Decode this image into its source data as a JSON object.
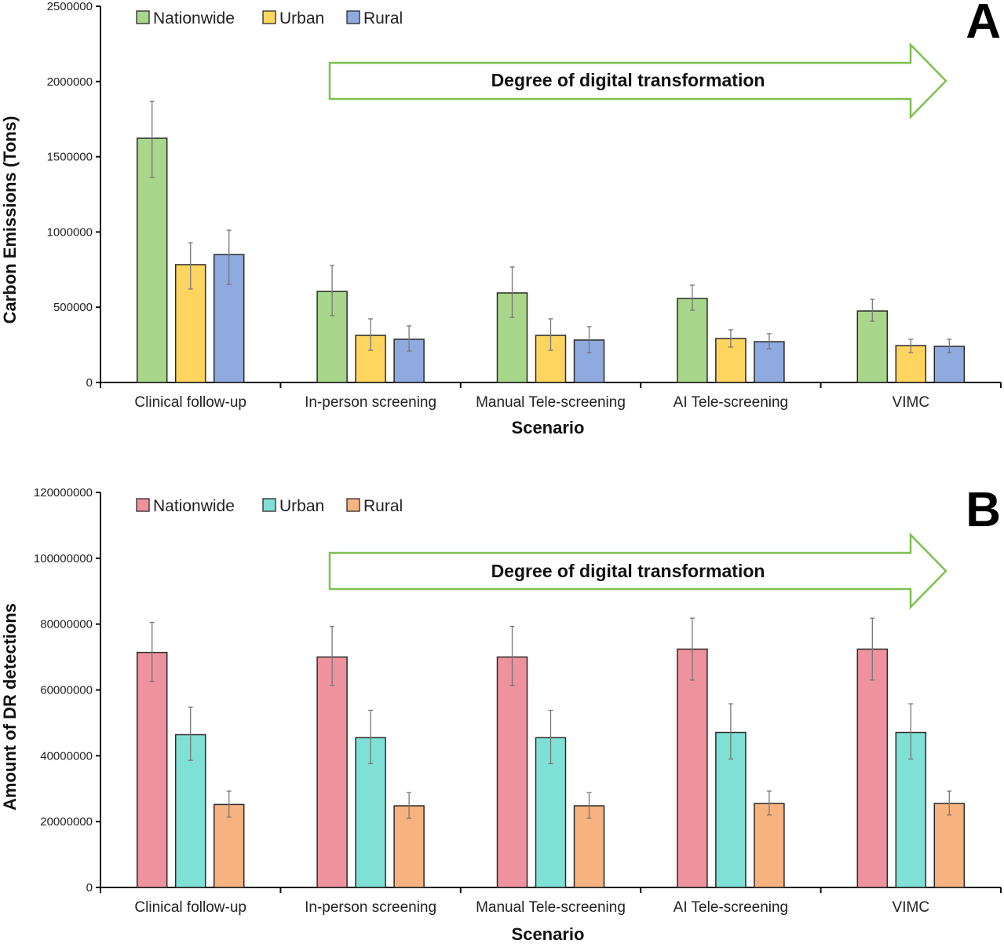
{
  "chart_data": [
    {
      "type": "bar",
      "panel": "A",
      "title": "",
      "xlabel": "Scenario",
      "ylabel": "Carbon Emissions (Tons)",
      "ylim": [
        0,
        2500000
      ],
      "yticks": [
        0,
        500000,
        1000000,
        1500000,
        2000000,
        2500000
      ],
      "ytick_labels": [
        "0",
        "500000",
        "1000000",
        "1500000",
        "2000000",
        "2500000"
      ],
      "categories": [
        "Clinical follow-up",
        "In-person screening",
        "Manual Tele-screening",
        "AI Tele-screening",
        "VIMC"
      ],
      "legend_position": "top-left",
      "annotation": "Degree of digital transformation",
      "series": [
        {
          "name": "Nationwide",
          "color": "#a8d68a",
          "values": [
            1623000,
            605000,
            595000,
            558000,
            475000
          ],
          "err_low": [
            1362000,
            444000,
            433000,
            480000,
            407000
          ],
          "err_high": [
            1868000,
            778000,
            767000,
            647000,
            553000
          ]
        },
        {
          "name": "Urban",
          "color": "#fdd55f",
          "values": [
            783000,
            313000,
            313000,
            292000,
            245000
          ],
          "err_low": [
            621000,
            214000,
            214000,
            235000,
            198000
          ],
          "err_high": [
            929000,
            423000,
            423000,
            350000,
            287000
          ]
        },
        {
          "name": "Rural",
          "color": "#8eaadf",
          "values": [
            850000,
            287000,
            282000,
            271000,
            240000
          ],
          "err_low": [
            652000,
            209000,
            198000,
            224000,
            198000
          ],
          "err_high": [
            1012000,
            376000,
            371000,
            324000,
            287000
          ]
        }
      ]
    },
    {
      "type": "bar",
      "panel": "B",
      "title": "",
      "xlabel": "Scenario",
      "ylabel": "Amount of DR detections",
      "ylim": [
        0,
        120000000
      ],
      "yticks": [
        0,
        20000000,
        40000000,
        60000000,
        80000000,
        100000000,
        120000000
      ],
      "ytick_labels": [
        "0",
        "20000000",
        "40000000",
        "60000000",
        "80000000",
        "100000000",
        "120000000"
      ],
      "categories": [
        "Clinical follow-up",
        "In-person screening",
        "Manual Tele-screening",
        "AI Tele-screening",
        "VIMC"
      ],
      "legend_position": "top-left",
      "annotation": "Degree of digital transformation",
      "series": [
        {
          "name": "Nationwide",
          "color": "#ee929d",
          "values": [
            71400000,
            70000000,
            70000000,
            72400000,
            72400000
          ],
          "err_low": [
            62600000,
            61400000,
            61400000,
            63000000,
            63000000
          ],
          "err_high": [
            80500000,
            79300000,
            79300000,
            81800000,
            81800000
          ]
        },
        {
          "name": "Urban",
          "color": "#7fe0d6",
          "values": [
            46400000,
            45500000,
            45500000,
            47100000,
            47100000
          ],
          "err_low": [
            38600000,
            37600000,
            37600000,
            39000000,
            39000000
          ],
          "err_high": [
            54800000,
            53800000,
            53800000,
            55800000,
            55800000
          ]
        },
        {
          "name": "Rural",
          "color": "#f6b37f",
          "values": [
            25200000,
            24800000,
            24800000,
            25500000,
            25500000
          ],
          "err_low": [
            21400000,
            21000000,
            21000000,
            22000000,
            22000000
          ],
          "err_high": [
            29300000,
            28800000,
            28800000,
            29300000,
            29300000
          ]
        }
      ]
    }
  ],
  "panels": {
    "a": {
      "letter": "A",
      "arrow_text": "Degree of digital transformation",
      "xlabel": "Scenario",
      "ylabel": "Carbon Emissions (Tons)"
    },
    "b": {
      "letter": "B",
      "arrow_text": "Degree of digital transformation",
      "xlabel": "Scenario",
      "ylabel": "Amount of DR detections"
    }
  },
  "colors": {
    "arrow_stroke": "#7dc14f",
    "axis": "#111111",
    "error_bar": "#777777",
    "bar_border": "#2a2a2a"
  }
}
